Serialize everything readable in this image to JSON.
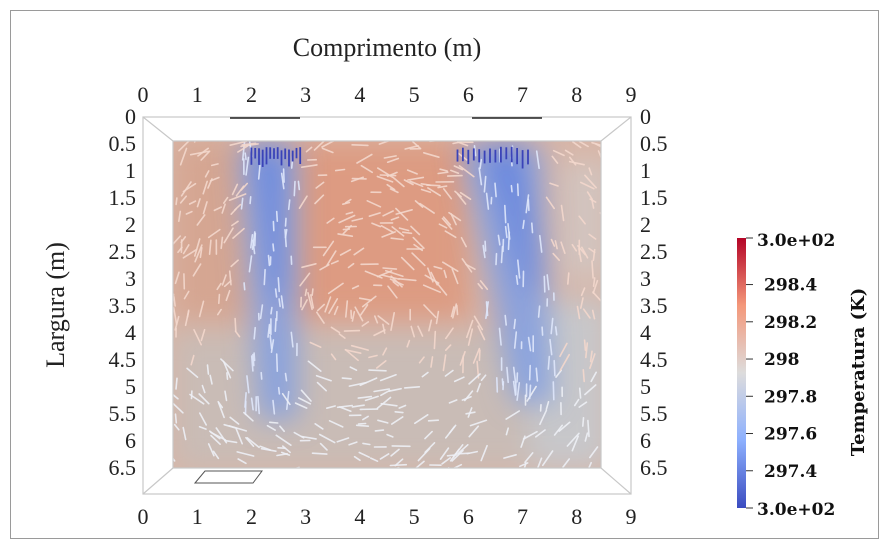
{
  "chart_data": {
    "type": "heatmap",
    "description_of_field": "temperature field with velocity vectors",
    "top_axis": {
      "label": "Comprimento (m)",
      "ticks": [
        "0",
        "1",
        "2",
        "3",
        "4",
        "5",
        "6",
        "7",
        "8",
        "9"
      ],
      "range": [
        0,
        9
      ]
    },
    "bottom_axis": {
      "ticks": [
        "0",
        "1",
        "2",
        "3",
        "4",
        "5",
        "6",
        "7",
        "8",
        "9"
      ],
      "range": [
        0,
        9
      ]
    },
    "left_axis": {
      "label": "Largura (m)",
      "ticks": [
        "0",
        "0.5",
        "1",
        "1.5",
        "2",
        "2.5",
        "3",
        "3.5",
        "4",
        "4.5",
        "5",
        "5.5",
        "6",
        "6.5"
      ],
      "range": [
        0,
        6.5
      ]
    },
    "right_axis": {
      "ticks": [
        "0",
        "0.5",
        "1",
        "1.5",
        "2",
        "2.5",
        "3",
        "3.5",
        "4",
        "4.5",
        "5",
        "5.5",
        "6",
        "6.5"
      ],
      "range": [
        0,
        6.5
      ]
    },
    "domain_extent": {
      "x": [
        0.55,
        8.45
      ],
      "y": [
        0.5,
        6.5
      ]
    },
    "cold_plumes": [
      {
        "x_center": 2.3,
        "x_top_width": 1.1,
        "y_end": 5.6,
        "x_end": 2.5
      },
      {
        "x_center": 6.6,
        "x_top_width": 1.5,
        "y_end": 5.3,
        "x_end": 7.2
      }
    ],
    "colorbar": {
      "title": "Temperatura (K)",
      "min_label": "3.0e+02",
      "max_label": "3.0e+02",
      "tick_labels": [
        "298.4",
        "298.2",
        "298",
        "297.8",
        "297.6",
        "297.4"
      ],
      "tick_values": [
        298.4,
        298.2,
        298.0,
        297.8,
        297.6,
        297.4
      ],
      "range": [
        297.2,
        298.65
      ],
      "colormap": [
        "#3b4cc0",
        "#7b9ff9",
        "#dddcdc",
        "#f49a7b",
        "#b40426"
      ]
    }
  }
}
